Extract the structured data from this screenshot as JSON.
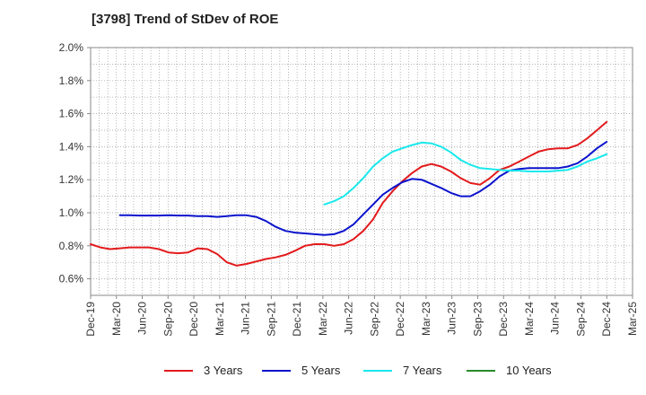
{
  "chart_data": {
    "type": "line",
    "title": "[3798]  Trend of StDev of ROE",
    "xlabel": "",
    "ylabel": "",
    "x_tick_labels": [
      "Dec-19",
      "Mar-20",
      "Jun-20",
      "Sep-20",
      "Dec-20",
      "Mar-21",
      "Jun-21",
      "Sep-21",
      "Dec-21",
      "Mar-22",
      "Jun-22",
      "Sep-22",
      "Dec-22",
      "Mar-23",
      "Jun-23",
      "Sep-23",
      "Dec-23",
      "Mar-24",
      "Jun-24",
      "Sep-24",
      "Dec-24",
      "Mar-25"
    ],
    "y_tick_labels": [
      "0.6%",
      "0.8%",
      "1.0%",
      "1.2%",
      "1.4%",
      "1.6%",
      "1.8%",
      "2.0%"
    ],
    "ylim": [
      0.5,
      2.0
    ],
    "y_unit": "%",
    "grid": true,
    "legend_position": "bottom",
    "series": [
      {
        "name": "3 Years",
        "color": "#e31a1c",
        "values": [
          0.81,
          0.79,
          0.78,
          0.785,
          0.79,
          0.79,
          0.79,
          0.78,
          0.76,
          0.755,
          0.76,
          0.785,
          0.78,
          0.75,
          0.7,
          0.68,
          0.69,
          0.705,
          0.72,
          0.73,
          0.745,
          0.77,
          0.8,
          0.81,
          0.81,
          0.8,
          0.81,
          0.84,
          0.89,
          0.96,
          1.06,
          1.13,
          1.19,
          1.24,
          1.28,
          1.295,
          1.28,
          1.25,
          1.21,
          1.18,
          1.17,
          1.21,
          1.26,
          1.28,
          1.31,
          1.34,
          1.37,
          1.385,
          1.39,
          1.39,
          1.41,
          1.45,
          1.5,
          1.55
        ]
      },
      {
        "name": "5 Years",
        "color": "#0b13cc",
        "values": [
          null,
          null,
          null,
          0.985,
          0.985,
          0.983,
          0.983,
          0.983,
          0.985,
          0.983,
          0.983,
          0.98,
          0.98,
          0.975,
          0.98,
          0.985,
          0.985,
          0.975,
          0.95,
          0.915,
          0.89,
          0.88,
          0.875,
          0.87,
          0.865,
          0.87,
          0.89,
          0.93,
          0.99,
          1.05,
          1.11,
          1.15,
          1.185,
          1.205,
          1.2,
          1.175,
          1.15,
          1.12,
          1.1,
          1.1,
          1.13,
          1.17,
          1.22,
          1.255,
          1.265,
          1.27,
          1.27,
          1.27,
          1.27,
          1.28,
          1.3,
          1.34,
          1.39,
          1.43
        ]
      },
      {
        "name": "7 Years",
        "color": "#19e8ec",
        "values": [
          null,
          null,
          null,
          null,
          null,
          null,
          null,
          null,
          null,
          null,
          null,
          null,
          null,
          null,
          null,
          null,
          null,
          null,
          null,
          null,
          null,
          null,
          null,
          null,
          1.05,
          1.07,
          1.1,
          1.15,
          1.21,
          1.28,
          1.33,
          1.37,
          1.39,
          1.41,
          1.425,
          1.42,
          1.4,
          1.365,
          1.32,
          1.29,
          1.27,
          1.265,
          1.26,
          1.255,
          1.255,
          1.25,
          1.25,
          1.25,
          1.255,
          1.26,
          1.28,
          1.31,
          1.33,
          1.355
        ]
      },
      {
        "name": "10 Years",
        "color": "#2a8a2a",
        "values": []
      }
    ]
  }
}
